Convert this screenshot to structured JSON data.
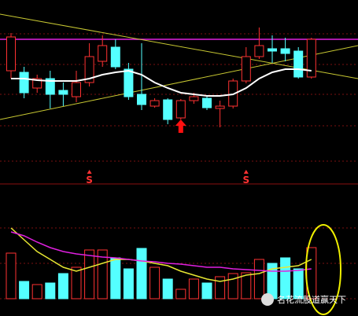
{
  "chart_data": {
    "type": "candlestick",
    "open": [
      140,
      138,
      118,
      130,
      115,
      107,
      125,
      152,
      170,
      142,
      110,
      95,
      103,
      80,
      102,
      105,
      92,
      95,
      127,
      158,
      168,
      168,
      165,
      132
    ],
    "close": [
      183,
      112,
      130,
      110,
      110,
      125,
      158,
      172,
      145,
      107,
      97,
      102,
      78,
      102,
      107,
      93,
      95,
      127,
      158,
      172,
      165,
      162,
      132,
      180
    ],
    "high": [
      188,
      145,
      135,
      140,
      125,
      140,
      175,
      185,
      180,
      150,
      175,
      105,
      105,
      104,
      112,
      107,
      102,
      130,
      170,
      195,
      185,
      182,
      170,
      182
    ],
    "low": [
      130,
      105,
      112,
      92,
      95,
      100,
      120,
      145,
      142,
      103,
      90,
      93,
      72,
      78,
      98,
      90,
      68,
      92,
      124,
      155,
      150,
      152,
      130,
      130
    ],
    "ylim": [
      0,
      230
    ],
    "up_color": "#ff3232",
    "down_color": "#54ffff",
    "ma": {
      "color": "#ffffff",
      "values": [
        130,
        130,
        128,
        127,
        127,
        127,
        130,
        135,
        138,
        140,
        135,
        125,
        118,
        112,
        110,
        108,
        108,
        110,
        118,
        130,
        138,
        142,
        142,
        140
      ]
    },
    "trendlines": [
      {
        "color": "#e020e0",
        "values": [
          180,
          180
        ]
      },
      {
        "color": "#c8c832",
        "values": [
          212,
          130
        ]
      },
      {
        "color": "#c8c832",
        "values": [
          78,
          172
        ]
      }
    ],
    "signals": [
      {
        "label": "S",
        "index": 6
      },
      {
        "label": "S",
        "index": 18
      }
    ],
    "buy_arrow_index": 13,
    "volume": [
      58,
      22,
      18,
      20,
      32,
      40,
      62,
      62,
      52,
      38,
      64,
      40,
      25,
      12,
      25,
      20,
      28,
      32,
      33,
      50,
      45,
      52,
      38,
      65
    ],
    "volume_ylim": [
      0,
      145
    ],
    "volume_ma": [
      {
        "color": "#e6e632",
        "values": [
          90,
          75,
          60,
          50,
          40,
          35,
          40,
          45,
          50,
          50,
          48,
          45,
          42,
          35,
          30,
          25,
          22,
          25,
          30,
          32,
          38,
          40,
          42,
          50
        ]
      },
      {
        "color": "#e020e0",
        "values": [
          85,
          80,
          72,
          65,
          60,
          57,
          55,
          53,
          52,
          50,
          48,
          47,
          45,
          44,
          42,
          40,
          40,
          38,
          37,
          36,
          35,
          35,
          36,
          38
        ]
      }
    ],
    "watermark": "名花流股道赢天下"
  }
}
